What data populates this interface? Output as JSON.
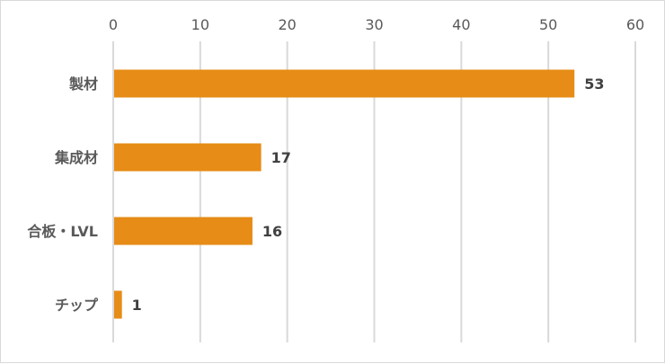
{
  "chart_data": {
    "type": "bar",
    "orientation": "horizontal",
    "categories": [
      "製材",
      "集成材",
      "合板・LVL",
      "チップ"
    ],
    "values": [
      53,
      17,
      16,
      1
    ],
    "data_labels": [
      "53",
      "17",
      "16",
      "1"
    ],
    "x_ticks": [
      "0",
      "10",
      "20",
      "30",
      "40",
      "50",
      "60"
    ],
    "xlim": [
      0,
      60
    ],
    "x_axis_position": "top",
    "grid": true,
    "legend": "none",
    "title": "",
    "xlabel": "",
    "ylabel": "",
    "colors": {
      "bar": "#E68C17",
      "grid": "#d9d9d9",
      "text": "#595959"
    }
  }
}
